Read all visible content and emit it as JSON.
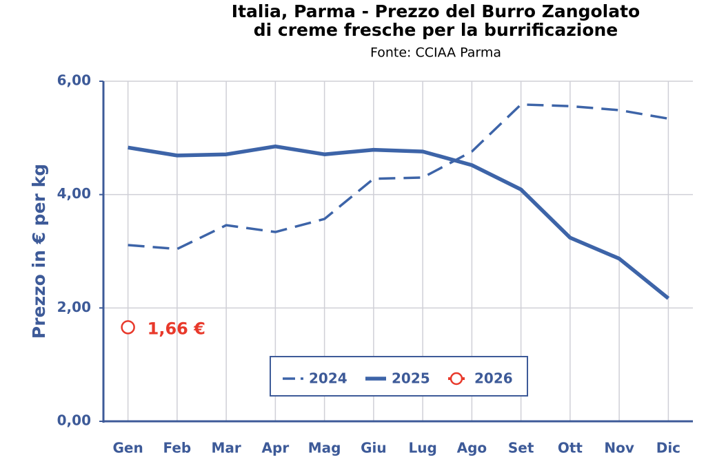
{
  "chart_data": {
    "type": "line",
    "title": [
      "Italia, Parma - Prezzo del Burro Zangolato",
      "di creme fresche per la burrificazione"
    ],
    "subtitle": "Fonte: CCIAA Parma",
    "y_label": "Prezzo in € per kg",
    "categories": [
      "Gen",
      "Feb",
      "Mar",
      "Apr",
      "Mag",
      "Giu",
      "Lug",
      "Ago",
      "Set",
      "Ott",
      "Nov",
      "Dic"
    ],
    "series": [
      {
        "name": "2024",
        "color": "#3d64a8",
        "style": "dashed",
        "values": [
          3.11,
          3.04,
          3.46,
          3.34,
          3.57,
          4.28,
          4.3,
          4.76,
          5.59,
          5.56,
          5.49,
          5.34
        ]
      },
      {
        "name": "2025",
        "color": "#3d64a8",
        "style": "solid",
        "values": [
          4.83,
          4.69,
          4.71,
          4.85,
          4.71,
          4.79,
          4.76,
          4.52,
          4.09,
          3.24,
          2.87,
          2.17
        ]
      },
      {
        "name": "2026",
        "color": "#e8392b",
        "style": "marker",
        "values": [
          1.66,
          null,
          null,
          null,
          null,
          null,
          null,
          null,
          null,
          null,
          null,
          null
        ],
        "value_labels": [
          "1,66 €",
          null,
          null,
          null,
          null,
          null,
          null,
          null,
          null,
          null,
          null,
          null
        ]
      }
    ],
    "ylim": [
      0,
      6
    ],
    "yticks": [
      {
        "value": 0,
        "label": "0,00"
      },
      {
        "value": 2,
        "label": "2,00"
      },
      {
        "value": 4,
        "label": "4,00"
      },
      {
        "value": 6,
        "label": "6,00"
      }
    ],
    "grid": true
  }
}
